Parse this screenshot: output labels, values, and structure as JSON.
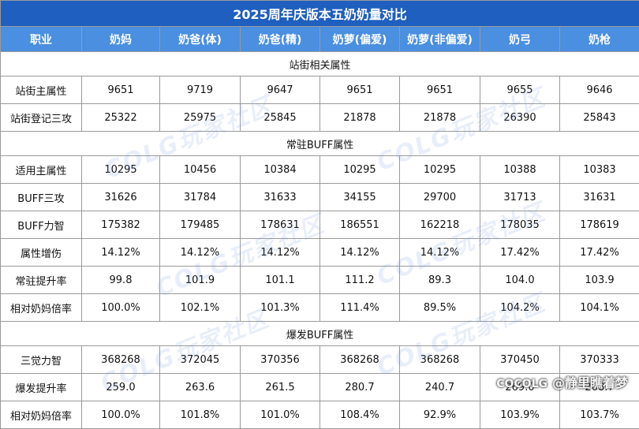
{
  "title": "2025周年庆版本五奶奶量对比",
  "headers": [
    "职业",
    "奶妈",
    "奶爸(体)",
    "奶爸(精)",
    "奶萝(偏爱)",
    "奶萝(非偏爱)",
    "奶弓",
    "奶枪"
  ],
  "sections": [
    {
      "name": "站街相关属性",
      "rows": [
        {
          "label": "站街主属性",
          "values": [
            "9651",
            "9719",
            "9647",
            "9651",
            "9651",
            "9655",
            "9646"
          ]
        },
        {
          "label": "站街登记三攻",
          "values": [
            "25322",
            "25975",
            "25845",
            "21878",
            "21878",
            "26390",
            "25843"
          ]
        }
      ]
    },
    {
      "name": "常驻BUFF属性",
      "rows": [
        {
          "label": "适用主属性",
          "values": [
            "10295",
            "10456",
            "10384",
            "10295",
            "10295",
            "10388",
            "10383"
          ]
        },
        {
          "label": "BUFF三攻",
          "values": [
            "31626",
            "31784",
            "31633",
            "34155",
            "29700",
            "31713",
            "31631"
          ]
        },
        {
          "label": "BUFF力智",
          "values": [
            "175382",
            "179485",
            "178631",
            "186551",
            "162218",
            "178035",
            "178619"
          ]
        },
        {
          "label": "属性增伤",
          "values": [
            "14.12%",
            "14.12%",
            "14.12%",
            "14.12%",
            "14.12%",
            "17.42%",
            "17.42%"
          ]
        },
        {
          "label": "常驻提升率",
          "values": [
            "99.8",
            "101.9",
            "101.1",
            "111.2",
            "89.3",
            "104.0",
            "103.9"
          ]
        },
        {
          "label": "相对奶妈倍率",
          "values": [
            "100.0%",
            "102.1%",
            "101.3%",
            "111.4%",
            "89.5%",
            "104.2%",
            "104.1%"
          ]
        }
      ]
    },
    {
      "name": "爆发BUFF属性",
      "rows": [
        {
          "label": "三觉力智",
          "values": [
            "368268",
            "372045",
            "370356",
            "368268",
            "368268",
            "370450",
            "370333"
          ]
        },
        {
          "label": "爆发提升率",
          "values": [
            "259.0",
            "263.6",
            "261.5",
            "280.7",
            "240.7",
            "269.0",
            "268.7"
          ]
        },
        {
          "label": "相对奶妈倍率",
          "values": [
            "100.0%",
            "101.8%",
            "101.0%",
            "108.4%",
            "92.9%",
            "103.9%",
            "103.7%"
          ]
        }
      ]
    }
  ],
  "watermark_text": "COLG玩家社区",
  "credit": {
    "logo": "COCOLG",
    "handle": "@静里瞧着梦"
  },
  "colors": {
    "title_bg": "#1f5fbf",
    "header_bg": "#4a8fe0",
    "border": "#9a9a9a"
  }
}
